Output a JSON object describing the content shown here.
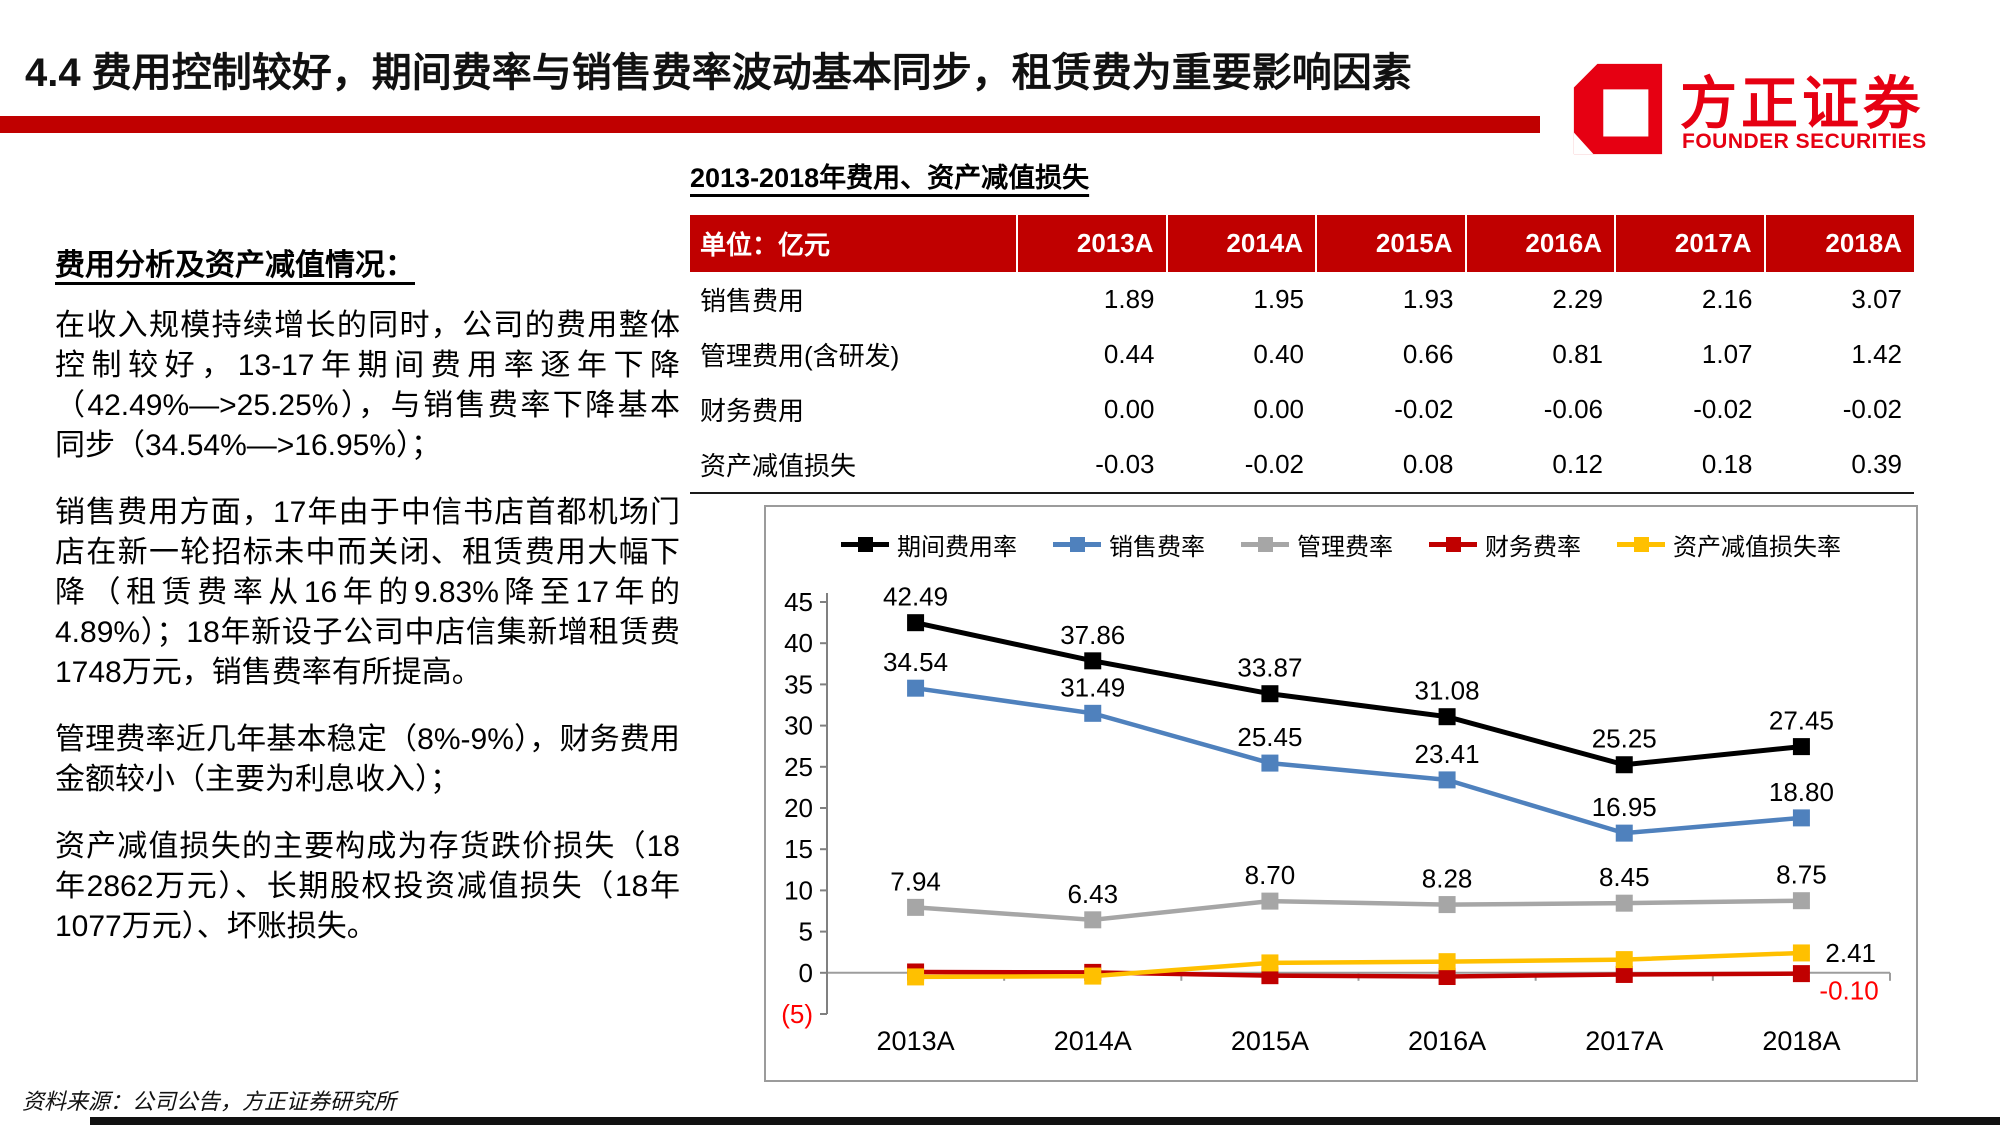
{
  "header": {
    "title": "4.4 费用控制较好，期间费率与销售费率波动基本同步，租赁费为重要影响因素",
    "accent_color": "#C00000",
    "logo": {
      "name_cn": "方正证券",
      "name_en": "FOUNDER SECURITIES",
      "color": "#E60012"
    }
  },
  "left_panel": {
    "heading": "费用分析及资产减值情况：",
    "paragraphs": [
      "在收入规模持续增长的同时，公司的费用整体控制较好，13-17年期间费用率逐年下降（42.49%—>25.25%），与销售费率下降基本同步（34.54%—>16.95%）；",
      "销售费用方面，17年由于中信书店首都机场门店在新一轮招标未中而关闭、租赁费用大幅下降（租赁费率从16年的9.83%降至17年的4.89%）；18年新设子公司中店信集新增租赁费1748万元，销售费率有所提高。",
      "管理费率近几年基本稳定（8%-9%），财务费用金额较小（主要为利息收入）；",
      "资产减值损失的主要构成为存货跌价损失（18年2862万元）、长期股权投资减值损失（18年1077万元）、坏账损失。"
    ]
  },
  "table": {
    "title": "2013-2018年费用、资产减值损失",
    "unit_header": "单位：亿元",
    "year_columns": [
      "2013A",
      "2014A",
      "2015A",
      "2016A",
      "2017A",
      "2018A"
    ],
    "rows": [
      {
        "label": "销售费用",
        "values": [
          "1.89",
          "1.95",
          "1.93",
          "2.29",
          "2.16",
          "3.07"
        ]
      },
      {
        "label": "管理费用(含研发)",
        "values": [
          "0.44",
          "0.40",
          "0.66",
          "0.81",
          "1.07",
          "1.42"
        ]
      },
      {
        "label": "财务费用",
        "values": [
          "0.00",
          "0.00",
          "-0.02",
          "-0.06",
          "-0.02",
          "-0.02"
        ]
      },
      {
        "label": "资产减值损失",
        "values": [
          "-0.03",
          "-0.02",
          "0.08",
          "0.12",
          "0.18",
          "0.39"
        ]
      }
    ]
  },
  "chart_data": {
    "type": "line",
    "categories": [
      "2013A",
      "2014A",
      "2015A",
      "2016A",
      "2017A",
      "2018A"
    ],
    "series": [
      {
        "name": "期间费用率",
        "color": "#000000",
        "values": [
          42.49,
          37.86,
          33.87,
          31.08,
          25.25,
          27.45
        ],
        "labels": [
          "42.49",
          "37.86",
          "33.87",
          "31.08",
          "25.25",
          "27.45"
        ],
        "label_mode": "above"
      },
      {
        "name": "销售费率",
        "color": "#4F81BD",
        "values": [
          34.54,
          31.49,
          25.45,
          23.41,
          16.95,
          18.8
        ],
        "labels": [
          "34.54",
          "31.49",
          "25.45",
          "23.41",
          "16.95",
          "18.80"
        ],
        "label_mode": "above"
      },
      {
        "name": "管理费率",
        "color": "#A6A6A6",
        "values": [
          7.94,
          6.43,
          8.7,
          8.28,
          8.45,
          8.75
        ],
        "labels": [
          "7.94",
          "6.43",
          "8.70",
          "8.28",
          "8.45",
          "8.75"
        ],
        "label_mode": "above"
      },
      {
        "name": "财务费率",
        "color": "#C00000",
        "values": [
          0.1,
          0.05,
          -0.35,
          -0.45,
          -0.2,
          -0.1
        ],
        "labels": [
          "",
          "",
          "",
          "",
          "",
          "-0.10"
        ],
        "label_mode": "below-right",
        "label_color": "#FF0000"
      },
      {
        "name": "资产减值损失率",
        "color": "#FFC000",
        "values": [
          -0.5,
          -0.4,
          1.2,
          1.35,
          1.6,
          2.41
        ],
        "labels": [
          "",
          "",
          "",
          "",
          "",
          "2.41"
        ],
        "label_mode": "right"
      }
    ],
    "ylim": [
      -5,
      45
    ],
    "yticks": [
      {
        "v": 45,
        "t": "45"
      },
      {
        "v": 40,
        "t": "40"
      },
      {
        "v": 35,
        "t": "35"
      },
      {
        "v": 30,
        "t": "30"
      },
      {
        "v": 25,
        "t": "25"
      },
      {
        "v": 20,
        "t": "20"
      },
      {
        "v": 15,
        "t": "15"
      },
      {
        "v": 10,
        "t": "10"
      },
      {
        "v": 5,
        "t": "5"
      },
      {
        "v": 0,
        "t": "0"
      },
      {
        "v": -5,
        "t": "(5)",
        "color": "#FF0000"
      }
    ],
    "legend_position": "top",
    "gridlines": "zero-line-only"
  },
  "footer": {
    "source": "资料来源：公司公告，方正证券研究所"
  }
}
